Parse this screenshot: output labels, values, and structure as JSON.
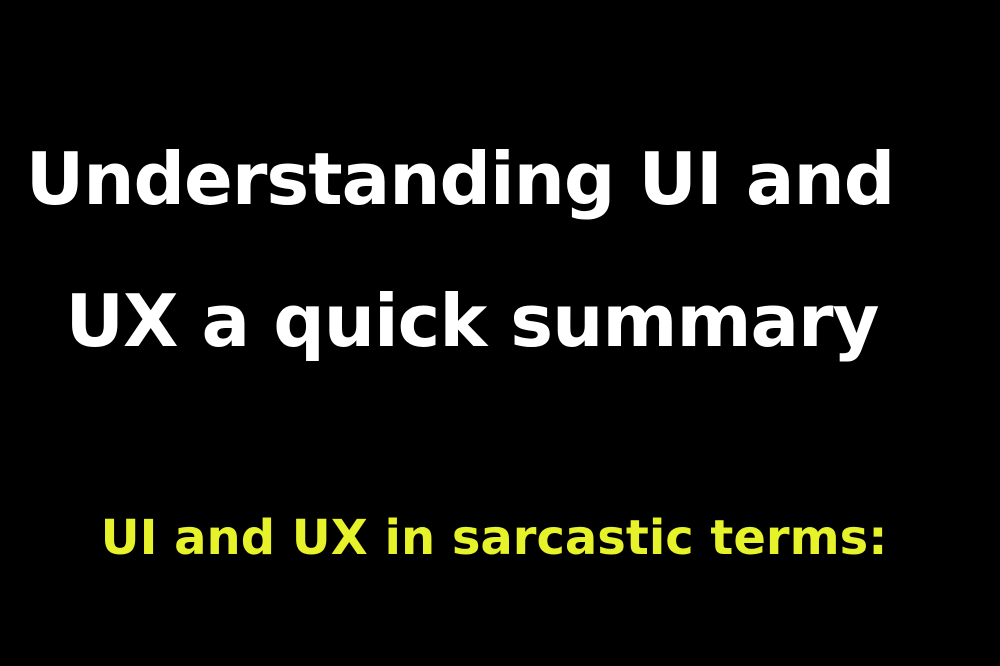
{
  "headline": {
    "line1": "Understanding UI and",
    "line2": "UX a quick summary"
  },
  "subheading": "UI and UX in sarcastic terms:",
  "colors": {
    "background": "#000000",
    "headline": "#ffffff",
    "subheading": "#e6f22a"
  }
}
